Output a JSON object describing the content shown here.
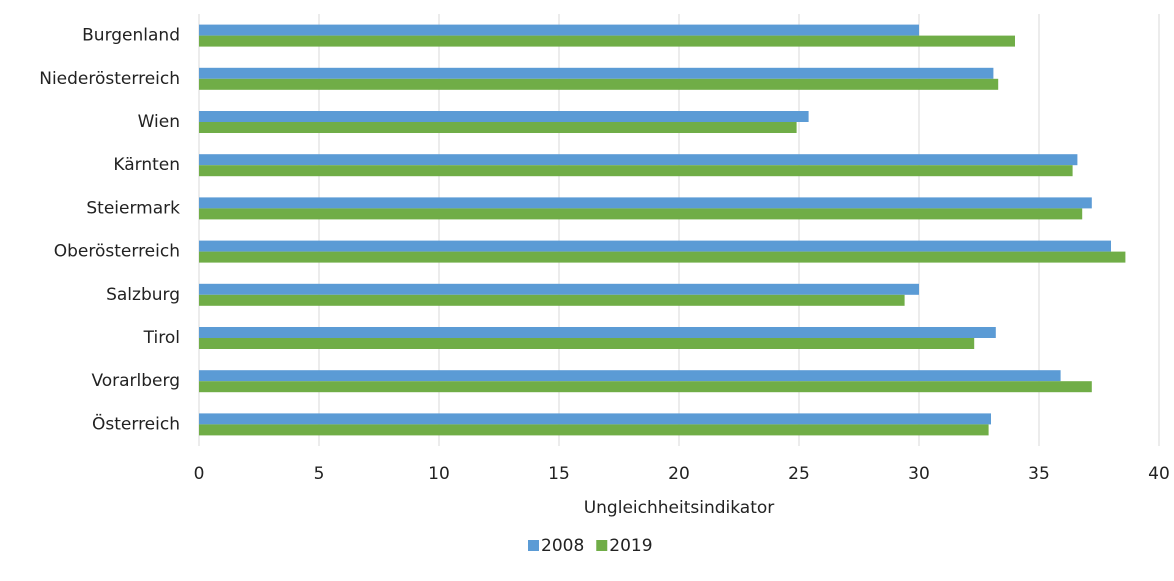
{
  "chart_data": {
    "type": "bar",
    "orientation": "horizontal",
    "categories": [
      "Burgenland",
      "Niederösterreich",
      "Wien",
      "Kärnten",
      "Steiermark",
      "Oberösterreich",
      "Salzburg",
      "Tirol",
      "Vorarlberg",
      "Österreich"
    ],
    "series": [
      {
        "name": "2008",
        "color": "#5b9bd5",
        "values": [
          30.0,
          33.1,
          25.4,
          36.6,
          37.2,
          38.0,
          30.0,
          33.2,
          35.9,
          33.0
        ]
      },
      {
        "name": "2019",
        "color": "#70ad47",
        "values": [
          34.0,
          33.3,
          24.9,
          36.4,
          36.8,
          38.6,
          29.4,
          32.3,
          37.2,
          32.9
        ]
      }
    ],
    "xlabel": "Ungleichheitsindikator",
    "xlim": [
      0,
      40
    ],
    "xticks": [
      0,
      5,
      10,
      15,
      20,
      25,
      30,
      35,
      40
    ],
    "grid": true,
    "legend": "bottom"
  }
}
